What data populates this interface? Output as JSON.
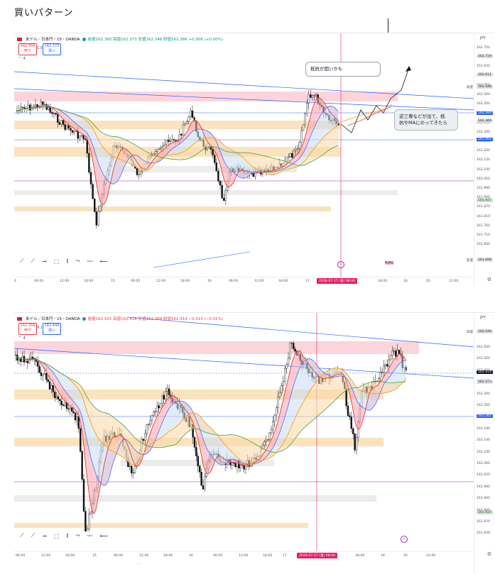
{
  "page": {
    "title": "買いパターン"
  },
  "chart1": {
    "symbol_line": "米ドル／日本円・15・OANDA",
    "ohlc": "始値162.360 高値162.373 安値162.348 終値162.366 +0.006 (+0.00%)",
    "sell_price": "162.358",
    "sell_label": "売り",
    "spread": "1.5",
    "buy_price": "162.373",
    "buy_label": "買い",
    "collapse": "⌃ 4",
    "currency": "JPY",
    "y_labels": [
      "162.750",
      "162.700",
      "162.650",
      "162.600",
      "162.550",
      "162.500",
      "162.450",
      "162.400",
      "162.350",
      "162.300",
      "162.250",
      "162.200",
      "162.150",
      "162.100",
      "162.050",
      "161.990",
      "161.900",
      "161.870",
      "161.810",
      "161.760",
      "161.710",
      "161.660"
    ],
    "tags": {
      "t1": "162.719",
      "t2": "162.611",
      "high_label": "高値",
      "high_value": "162.549",
      "t3": "162.489",
      "t4": "162.366",
      "t5": "162.262",
      "t6": "161.927",
      "low_label": "安値",
      "low_value": "161.606"
    },
    "x_labels": [
      "4",
      "06:00",
      "12:00",
      "18:00",
      "15",
      "06:00",
      "12:00",
      "18:00",
      "16",
      "06:00",
      "12:00",
      "18:00",
      "17",
      "18:00",
      "18",
      "20",
      "12:00"
    ],
    "x_tag": "2026-07-17 (金)  08:00",
    "callout1": "抵抗が固いかも",
    "callout2_line1": "逆三尊などが出て、抵",
    "callout2_line2": "抗やMAにのってきたら",
    "toolbar": [
      "⟋",
      "⟋",
      "⊸",
      "⬚",
      "⫾",
      "⤳",
      "〰",
      "⟵"
    ],
    "marker": "⚡",
    "flags": "🇺🇸🇺🇸"
  },
  "chart2": {
    "symbol_line": "米ドル／日本円・15・OANDA",
    "ohlc": "始値162.425 高値162.428 安値162.384 終値162.414 −0.010 (−0.01%)",
    "sell_price": "162.359",
    "sell_label": "売り",
    "spread": "9.1",
    "buy_price": "162.449",
    "buy_label": "買い",
    "collapse": "⌃ 4",
    "currency": "JPY",
    "y_labels": [
      "162.500",
      "162.450",
      "162.400",
      "162.350",
      "162.300",
      "162.260",
      "162.220",
      "162.180",
      "162.140",
      "162.100",
      "162.060",
      "162.020",
      "161.980",
      "161.940",
      "161.905",
      "161.870",
      "161.838"
    ],
    "tags": {
      "high_label": "高値",
      "high_value": "162.549",
      "t1": "162.414",
      "t2": "162.373",
      "t3": "162.262",
      "t4": "161.927"
    },
    "x_labels": [
      "06:00",
      "12:00",
      "18:00",
      "15",
      "06:00",
      "12:00",
      "18:00",
      "16",
      "06:00",
      "12:00",
      "18:00",
      "17",
      "18:00",
      "18",
      "20",
      "12:00"
    ],
    "x_tag": "2026-07-17 (金)  08:00",
    "toolbar": [
      "⟋",
      "⟋",
      "⊸",
      "⬚",
      "⫾",
      "⤳",
      "〰",
      "⟵"
    ],
    "marker": "⚡"
  },
  "colors": {
    "red": "#f23645",
    "blue": "#2962ff",
    "pink_line": "#e91e63",
    "magenta": "#9c27b0",
    "green": "#089981",
    "orange_zone": "#fbe3c0",
    "pink_zone": "#fcd5dc",
    "gray_zone": "#ececec"
  }
}
